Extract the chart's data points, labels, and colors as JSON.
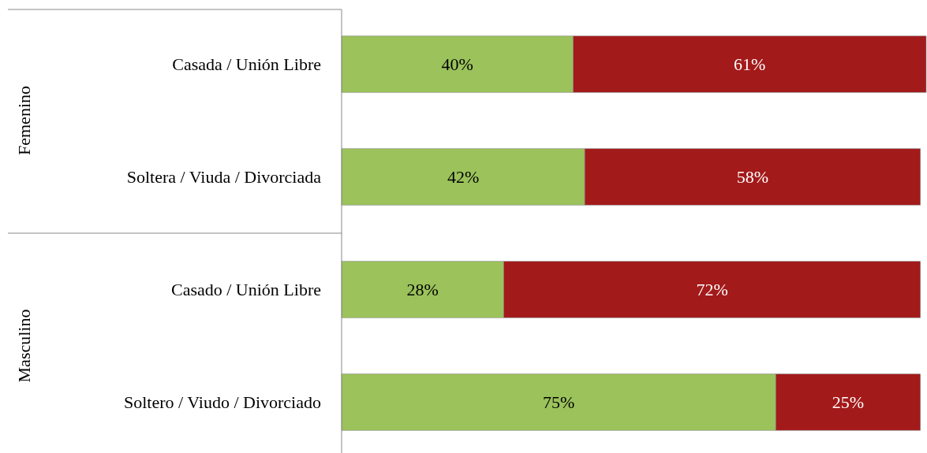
{
  "chart_data": {
    "type": "bar",
    "orientation": "horizontal",
    "stacked": true,
    "categories": [
      "Casada / Unión Libre",
      "Soltera / Viuda / Divorciada",
      "Casado / Unión Libre",
      "Soltero / Viudo / Divorciado"
    ],
    "series": [
      {
        "color": "#9bc25b",
        "values": [
          40,
          42,
          28,
          75
        ],
        "value_labels": [
          "40%",
          "42%",
          "28%",
          "75%"
        ]
      },
      {
        "color": "#a31a1a",
        "values": [
          61,
          58,
          72,
          25
        ],
        "value_labels": [
          "61%",
          "58%",
          "72%",
          "25%"
        ]
      }
    ],
    "annotations": [
      "Femenino",
      "Masculino"
    ]
  }
}
